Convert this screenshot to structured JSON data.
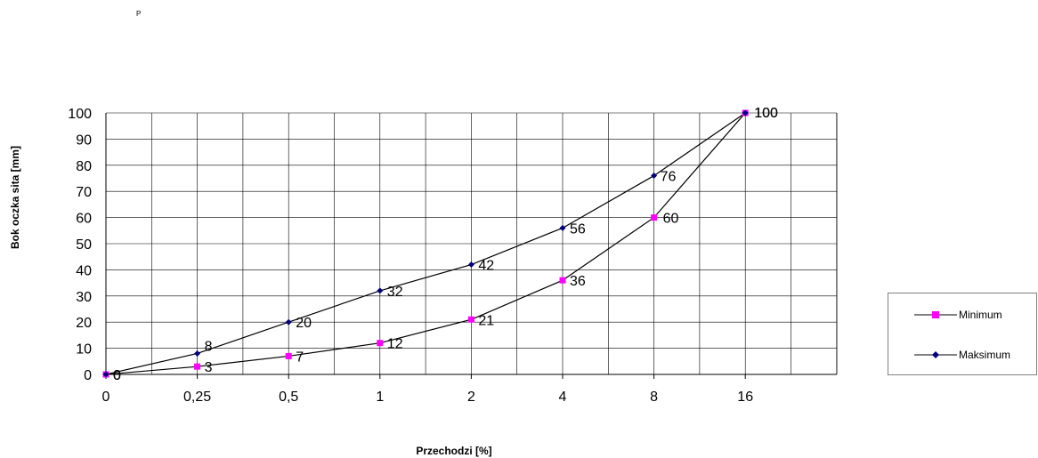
{
  "corner_mark": "P",
  "chart_data": {
    "type": "line",
    "title": "",
    "xlabel": "Przechodzi [%]",
    "ylabel": "Bok oczka sita [mm]",
    "categories": [
      "0",
      "0,25",
      "0,5",
      "1",
      "2",
      "4",
      "8",
      "16"
    ],
    "ylim": [
      0,
      100
    ],
    "yticks": [
      "0",
      "10",
      "20",
      "30",
      "40",
      "50",
      "60",
      "70",
      "80",
      "90",
      "100"
    ],
    "grid": true,
    "legend_position": "right",
    "series": [
      {
        "name": "Minimum",
        "values": [
          0,
          3,
          7,
          12,
          21,
          36,
          60,
          100
        ],
        "color": "#ff00ff",
        "marker": "square"
      },
      {
        "name": "Maksimum",
        "values": [
          0,
          8,
          20,
          32,
          42,
          56,
          76,
          100
        ],
        "color": "#000080",
        "marker": "diamond"
      }
    ]
  }
}
